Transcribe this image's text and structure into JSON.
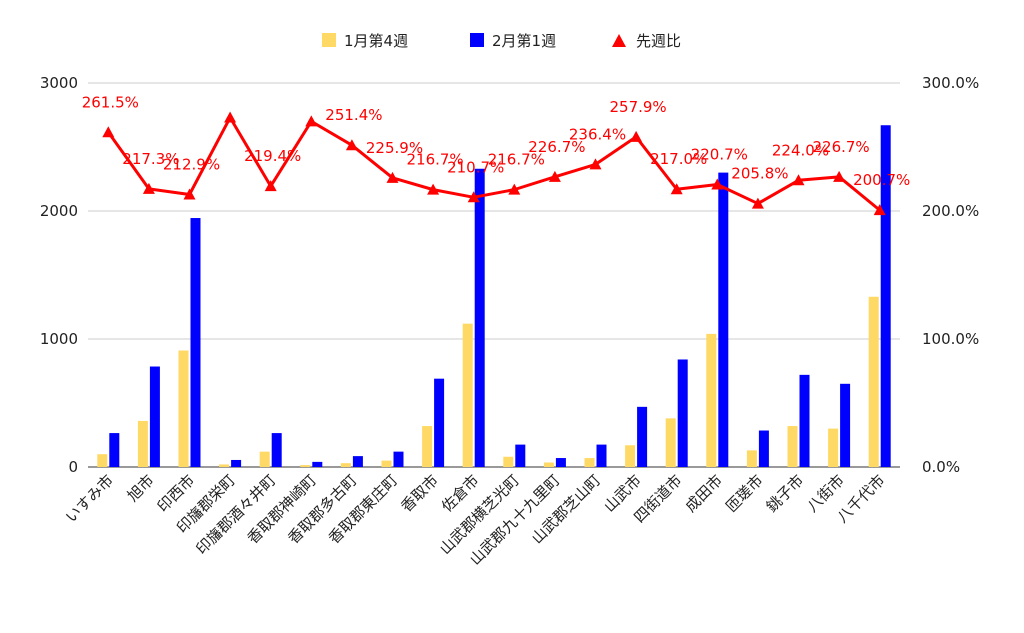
{
  "colors": {
    "series1": "#ffd966",
    "series2": "#0000ff",
    "ratio": "#ff0000",
    "grid": "#cccccc",
    "axis": "#333333"
  },
  "chart_data": {
    "type": "bar",
    "categories": [
      "いすみ市",
      "旭市",
      "印西市",
      "印旛郡栄町",
      "印旛郡酒々井町",
      "香取郡神崎町",
      "香取郡多古町",
      "香取郡東庄町",
      "香取市",
      "佐倉市",
      "山武郡横芝光町",
      "山武郡九十九里町",
      "山武郡芝山町",
      "山武市",
      "四街道市",
      "成田市",
      "匝瑳市",
      "銚子市",
      "八街市",
      "八千代市"
    ],
    "series": [
      {
        "name": "1月第4週",
        "axis": "left",
        "values": [
          100,
          360,
          910,
          20,
          120,
          15,
          30,
          50,
          320,
          1120,
          80,
          35,
          70,
          170,
          380,
          1040,
          130,
          320,
          300,
          1330
        ]
      },
      {
        "name": "2月第1週",
        "axis": "left",
        "values": [
          265,
          785,
          1945,
          55,
          265,
          40,
          85,
          120,
          690,
          2330,
          175,
          70,
          175,
          470,
          840,
          2300,
          285,
          720,
          650,
          2670
        ]
      },
      {
        "name": "先週比",
        "axis": "right",
        "type": "line",
        "values": [
          261.5,
          217.3,
          212.9,
          273.0,
          219.4,
          270.0,
          251.4,
          225.9,
          216.7,
          210.7,
          216.7,
          226.7,
          236.4,
          257.9,
          217.0,
          220.7,
          205.8,
          224.0,
          226.7,
          200.7
        ]
      }
    ],
    "data_labels": [
      "261.5%",
      "217.3%",
      "212.9%",
      "",
      "219.4%",
      "",
      "251.4%",
      "225.9%",
      "216.7%",
      "210.7%",
      "216.7%",
      "226.7%",
      "236.4%",
      "257.9%",
      "217.0%",
      "220.7%",
      "205.8%",
      "224.0%",
      "226.7%",
      "200.7%"
    ],
    "y_left": {
      "ticks": [
        "0",
        "1000",
        "2000",
        "3000"
      ],
      "ylim": [
        0,
        3000
      ]
    },
    "y_right": {
      "ticks": [
        "0.0%",
        "100.0%",
        "200.0%",
        "300.0%"
      ],
      "ylim": [
        0,
        300
      ]
    },
    "legend_position": "top-center",
    "grid": true
  }
}
